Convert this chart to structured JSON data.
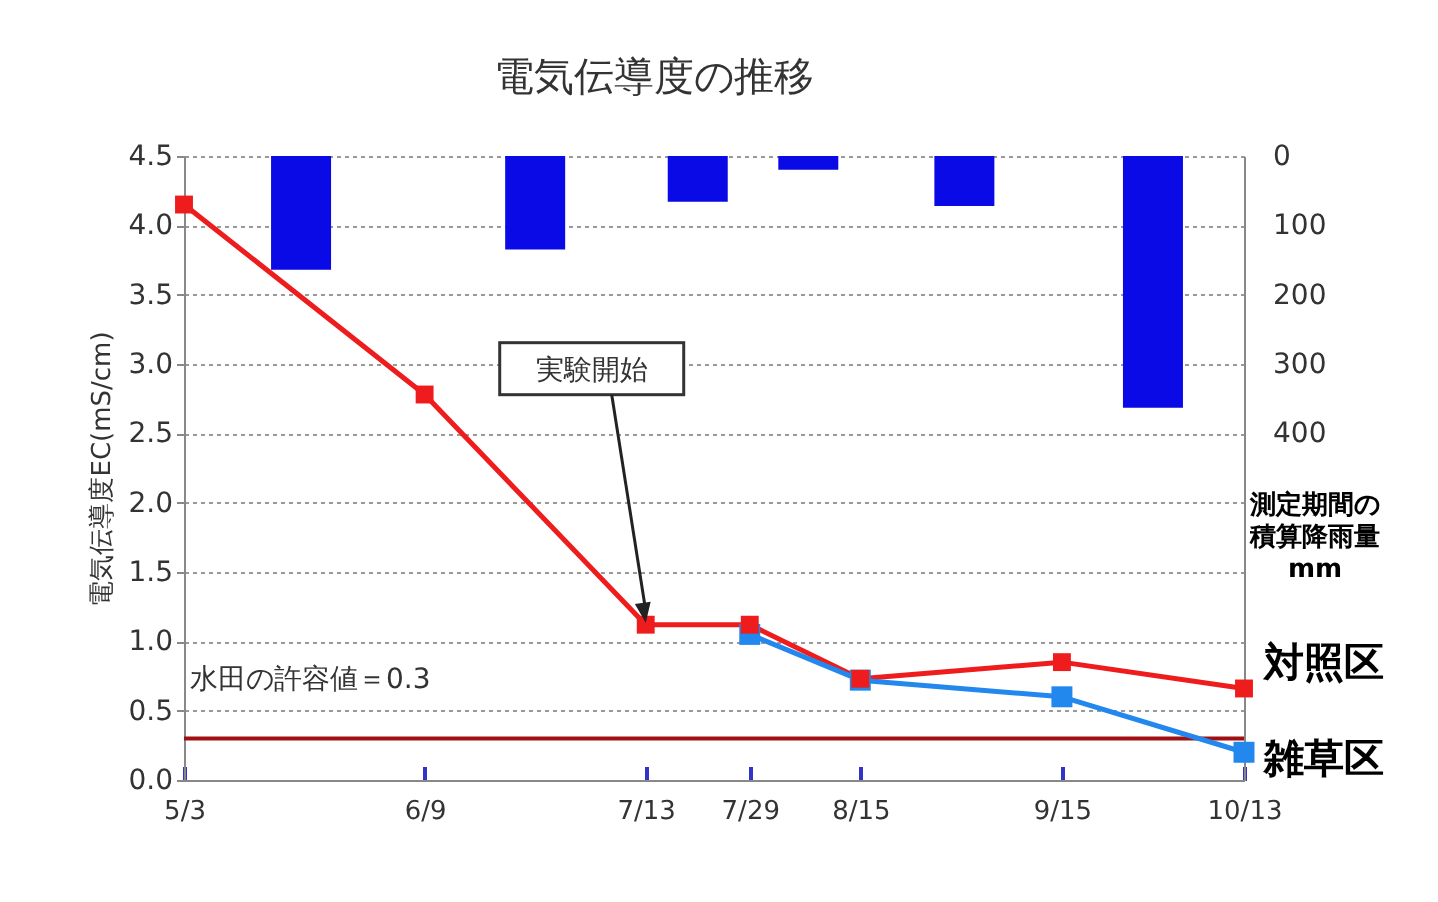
{
  "chart_data": {
    "type": "line",
    "title": "電気伝導度の推移",
    "ylabel": "電気伝導度EC(mS/cm)",
    "y2label": "測定期間の積算降雨量 mm",
    "xlim": [
      "--05-03",
      "--10-13"
    ],
    "xticks": [
      {
        "value": "--05-03",
        "label": "5/3"
      },
      {
        "value": "--06-09",
        "label": "6/9"
      },
      {
        "value": "--07-13",
        "label": "7/13"
      },
      {
        "value": "--07-29",
        "label": "7/29"
      },
      {
        "value": "--08-15",
        "label": "8/15"
      },
      {
        "value": "--09-15",
        "label": "9/15"
      },
      {
        "value": "--10-13",
        "label": "10/13"
      }
    ],
    "ylim": [
      0,
      4.5
    ],
    "yticks": [
      {
        "value": 0,
        "label": "0.0"
      },
      0.5,
      {
        "value": 1,
        "label": "1.0"
      },
      1.5,
      {
        "value": 2,
        "label": "2.0"
      },
      2.5,
      {
        "value": 3,
        "label": "3.0"
      },
      3.5,
      {
        "value": 4,
        "label": "4.0"
      },
      4.5
    ],
    "y2lim": [
      900,
      0
    ],
    "y2ticks": [
      0,
      100,
      200,
      300,
      400
    ],
    "grid": "y",
    "legend": false,
    "marker": "square",
    "series": [
      {
        "type": "bar",
        "axis": "y2",
        "color": "#0a0ae6",
        "x": [
          "--05-21",
          "--06-26",
          "--07-21",
          "--08-07",
          "--08-31",
          "--09-29"
        ],
        "values": [
          164,
          135,
          66,
          20,
          72,
          363
        ]
      },
      {
        "name": "対照区",
        "color": "#ee1c1c",
        "x": [
          "--05-03",
          "--06-09",
          "--07-13",
          "--07-29",
          "--08-15",
          "--09-15",
          "--10-13"
        ],
        "values": [
          4.15,
          2.78,
          1.12,
          1.12,
          0.73,
          0.85,
          0.66
        ]
      },
      {
        "name": "雑草区",
        "color": "#2288ee",
        "x": [
          "--07-29",
          "--08-15",
          "--09-15",
          "--10-13"
        ],
        "values": [
          1.05,
          0.72,
          0.6,
          0.2
        ]
      }
    ],
    "ref_lines": [
      {
        "axis": "y",
        "value": 0.3,
        "label": "水田の許容値＝0.3",
        "color": "#a01010"
      }
    ],
    "annotations": [
      {
        "text": "実験開始",
        "x": "--07-13",
        "y": 1.12
      }
    ]
  }
}
